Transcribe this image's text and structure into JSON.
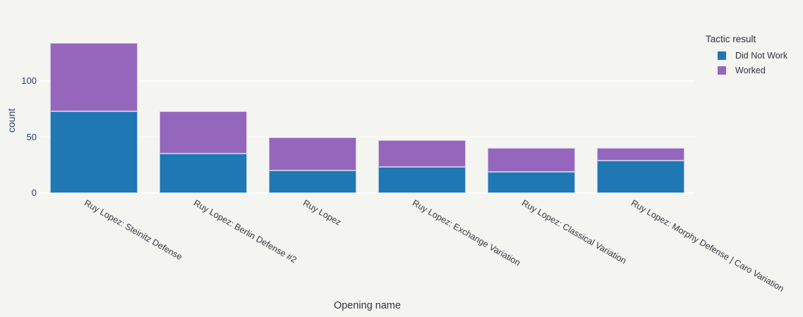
{
  "chart_data": {
    "type": "bar",
    "stacked": true,
    "orientation": "vertical",
    "title": "",
    "xlabel": "Opening name",
    "ylabel": "count",
    "categories": [
      "Ruy Lopez: Steinitz Defense",
      "Ruy Lopez: Berlin Defense #2",
      "Ruy Lopez",
      "Ruy Lopez: Exchange Variation",
      "Ruy Lopez: Classical Variation",
      "Ruy Lopez: Morphy Defense |  Caro Variation"
    ],
    "series": [
      {
        "name": "Did Not Work",
        "color": "#1f77b4",
        "values": [
          73,
          35,
          20,
          23,
          19,
          29
        ]
      },
      {
        "name": "Worked",
        "color": "#9467bd",
        "values": [
          61,
          38,
          30,
          24,
          21,
          11
        ]
      }
    ],
    "totals": [
      134,
      73,
      50,
      47,
      40,
      40
    ],
    "yticks": [
      0,
      50,
      100
    ],
    "ylim": [
      0,
      163
    ],
    "grid": true,
    "legend_title": "Tactic result",
    "legend_position": "right",
    "x_tick_angle_deg": 30
  },
  "colors": {
    "background": "#f4f4f1",
    "gridline": "#ffffff",
    "y_tick_text": "#2a3f5f",
    "x_tick_text": "#35383d",
    "bar_blue": "#1f77b4",
    "bar_purple": "#9467bd"
  }
}
